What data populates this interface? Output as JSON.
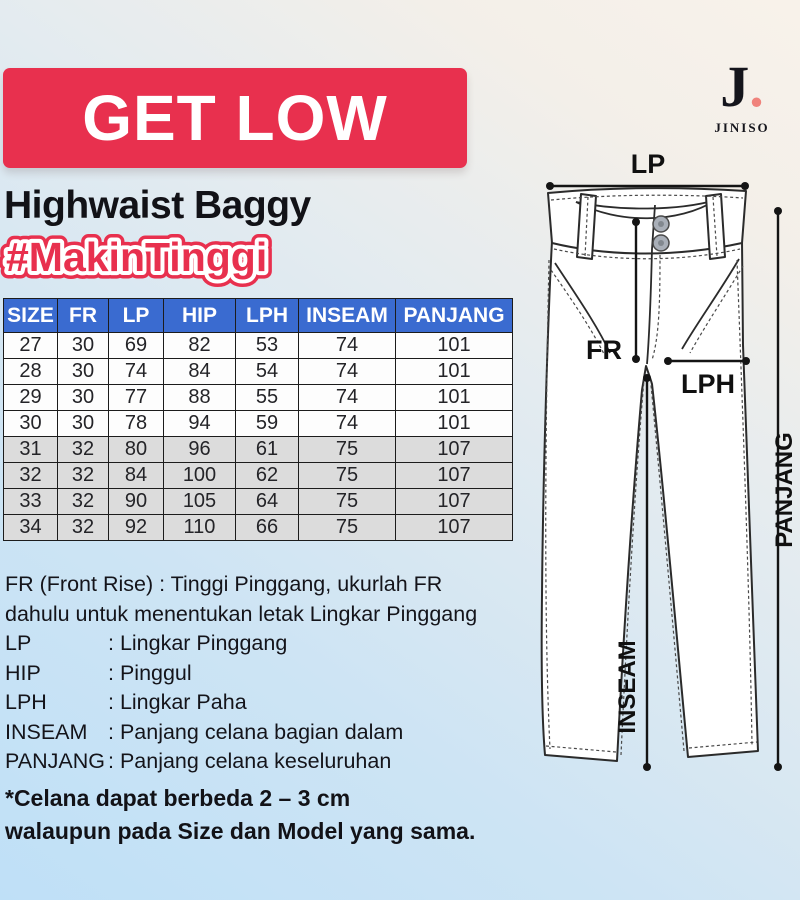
{
  "brand": {
    "initial": "J",
    "dot": ".",
    "name": "JINISO"
  },
  "header": {
    "banner": "GET LOW",
    "subtitle": "Highwaist Baggy",
    "hashtag": "#MakinTinggi"
  },
  "size_table": {
    "columns": [
      "SIZE",
      "FR",
      "LP",
      "HIP",
      "LPH",
      "INSEAM",
      "PANJANG"
    ],
    "rows": [
      [
        "27",
        "30",
        "69",
        "82",
        "53",
        "74",
        "101"
      ],
      [
        "28",
        "30",
        "74",
        "84",
        "54",
        "74",
        "101"
      ],
      [
        "29",
        "30",
        "77",
        "88",
        "55",
        "74",
        "101"
      ],
      [
        "30",
        "30",
        "78",
        "94",
        "59",
        "74",
        "101"
      ],
      [
        "31",
        "32",
        "80",
        "96",
        "61",
        "75",
        "107"
      ],
      [
        "32",
        "32",
        "84",
        "100",
        "62",
        "75",
        "107"
      ],
      [
        "33",
        "32",
        "90",
        "105",
        "64",
        "75",
        "107"
      ],
      [
        "34",
        "32",
        "92",
        "110",
        "66",
        "75",
        "107"
      ]
    ]
  },
  "legend": {
    "intro_line1": "FR (Front Rise) : Tinggi Pinggang, ukurlah FR",
    "intro_line2": "dahulu untuk menentukan letak Lingkar Pinggang",
    "items": [
      {
        "term": "LP",
        "definition": ": Lingkar Pinggang"
      },
      {
        "term": "HIP",
        "definition": ": Pinggul"
      },
      {
        "term": "LPH",
        "definition": ": Lingkar Paha"
      },
      {
        "term": "INSEAM",
        "definition": ": Panjang celana bagian dalam"
      },
      {
        "term": "PANJANG",
        "definition": ": Panjang celana keseluruhan"
      }
    ]
  },
  "note": {
    "line1": "*Celana dapat berbeda 2 – 3 cm",
    "line2": "walaupun pada Size dan Model yang sama."
  },
  "diagram_labels": {
    "lp": "LP",
    "fr": "FR",
    "lph": "LPH",
    "inseam": "INSEAM",
    "panjang": "PANJANG"
  },
  "colors": {
    "accent_red": "#e8304e",
    "table_header_blue": "#3a6bd0",
    "logo_dot_coral": "#f0827c",
    "row_alt_gray": "#dcdcdc"
  }
}
